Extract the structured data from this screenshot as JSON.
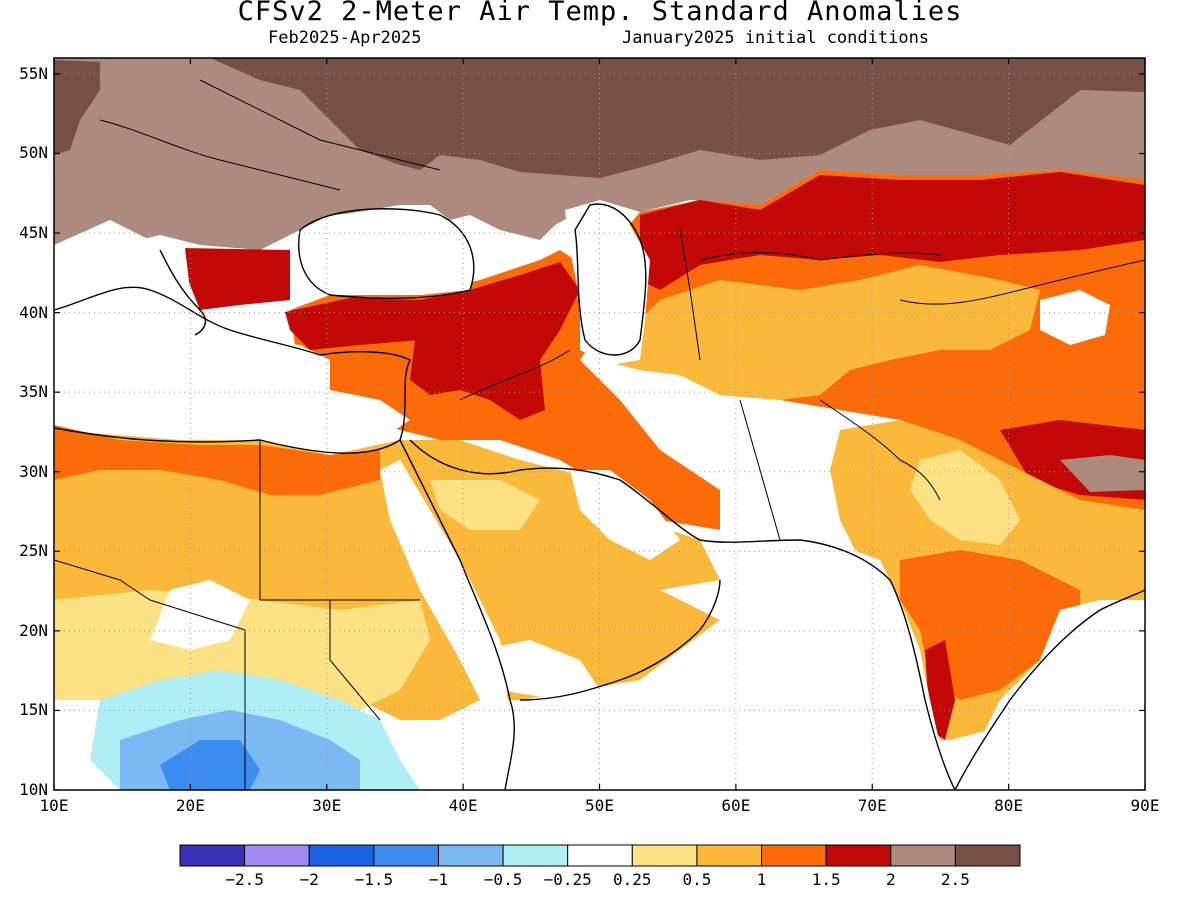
{
  "title": "CFSv2 2-Meter Air Temp. Standard Anomalies",
  "period": "Feb2025-Apr2025",
  "init": "January2025 initial conditions",
  "map": {
    "lat_range": [
      10,
      56
    ],
    "lon_range": [
      10,
      90
    ],
    "lat_ticks": [
      "55N",
      "50N",
      "45N",
      "40N",
      "35N",
      "30N",
      "25N",
      "20N",
      "15N",
      "10N"
    ],
    "lon_ticks": [
      "10E",
      "20E",
      "30E",
      "40E",
      "50E",
      "60E",
      "70E",
      "80E",
      "90E"
    ]
  },
  "colorbar": {
    "colors": [
      "#3a2fb5",
      "#9f8cf4",
      "#1c62e2",
      "#3d8df0",
      "#7cb8f3",
      "#b0eef6",
      "#ffffff",
      "#fde185",
      "#fbb93c",
      "#fb6b07",
      "#c30808",
      "#ad8a7e",
      "#784f44"
    ],
    "labels": [
      "-2.5",
      "-2",
      "-1.5",
      "-1",
      "-0.5",
      "-0.25",
      "0.25",
      "0.5",
      "1",
      "1.5",
      "2",
      "2.5"
    ]
  },
  "colors": {
    "dark_brown": "#784f44",
    "light_brown": "#ad8a7e",
    "dark_red": "#c30808",
    "orange": "#fb6b07",
    "light_orange": "#fbb93c",
    "pale_yellow": "#fde185",
    "pale_blue": "#b0eef6",
    "light_blue": "#7cb8f3",
    "blue": "#3d8df0"
  }
}
